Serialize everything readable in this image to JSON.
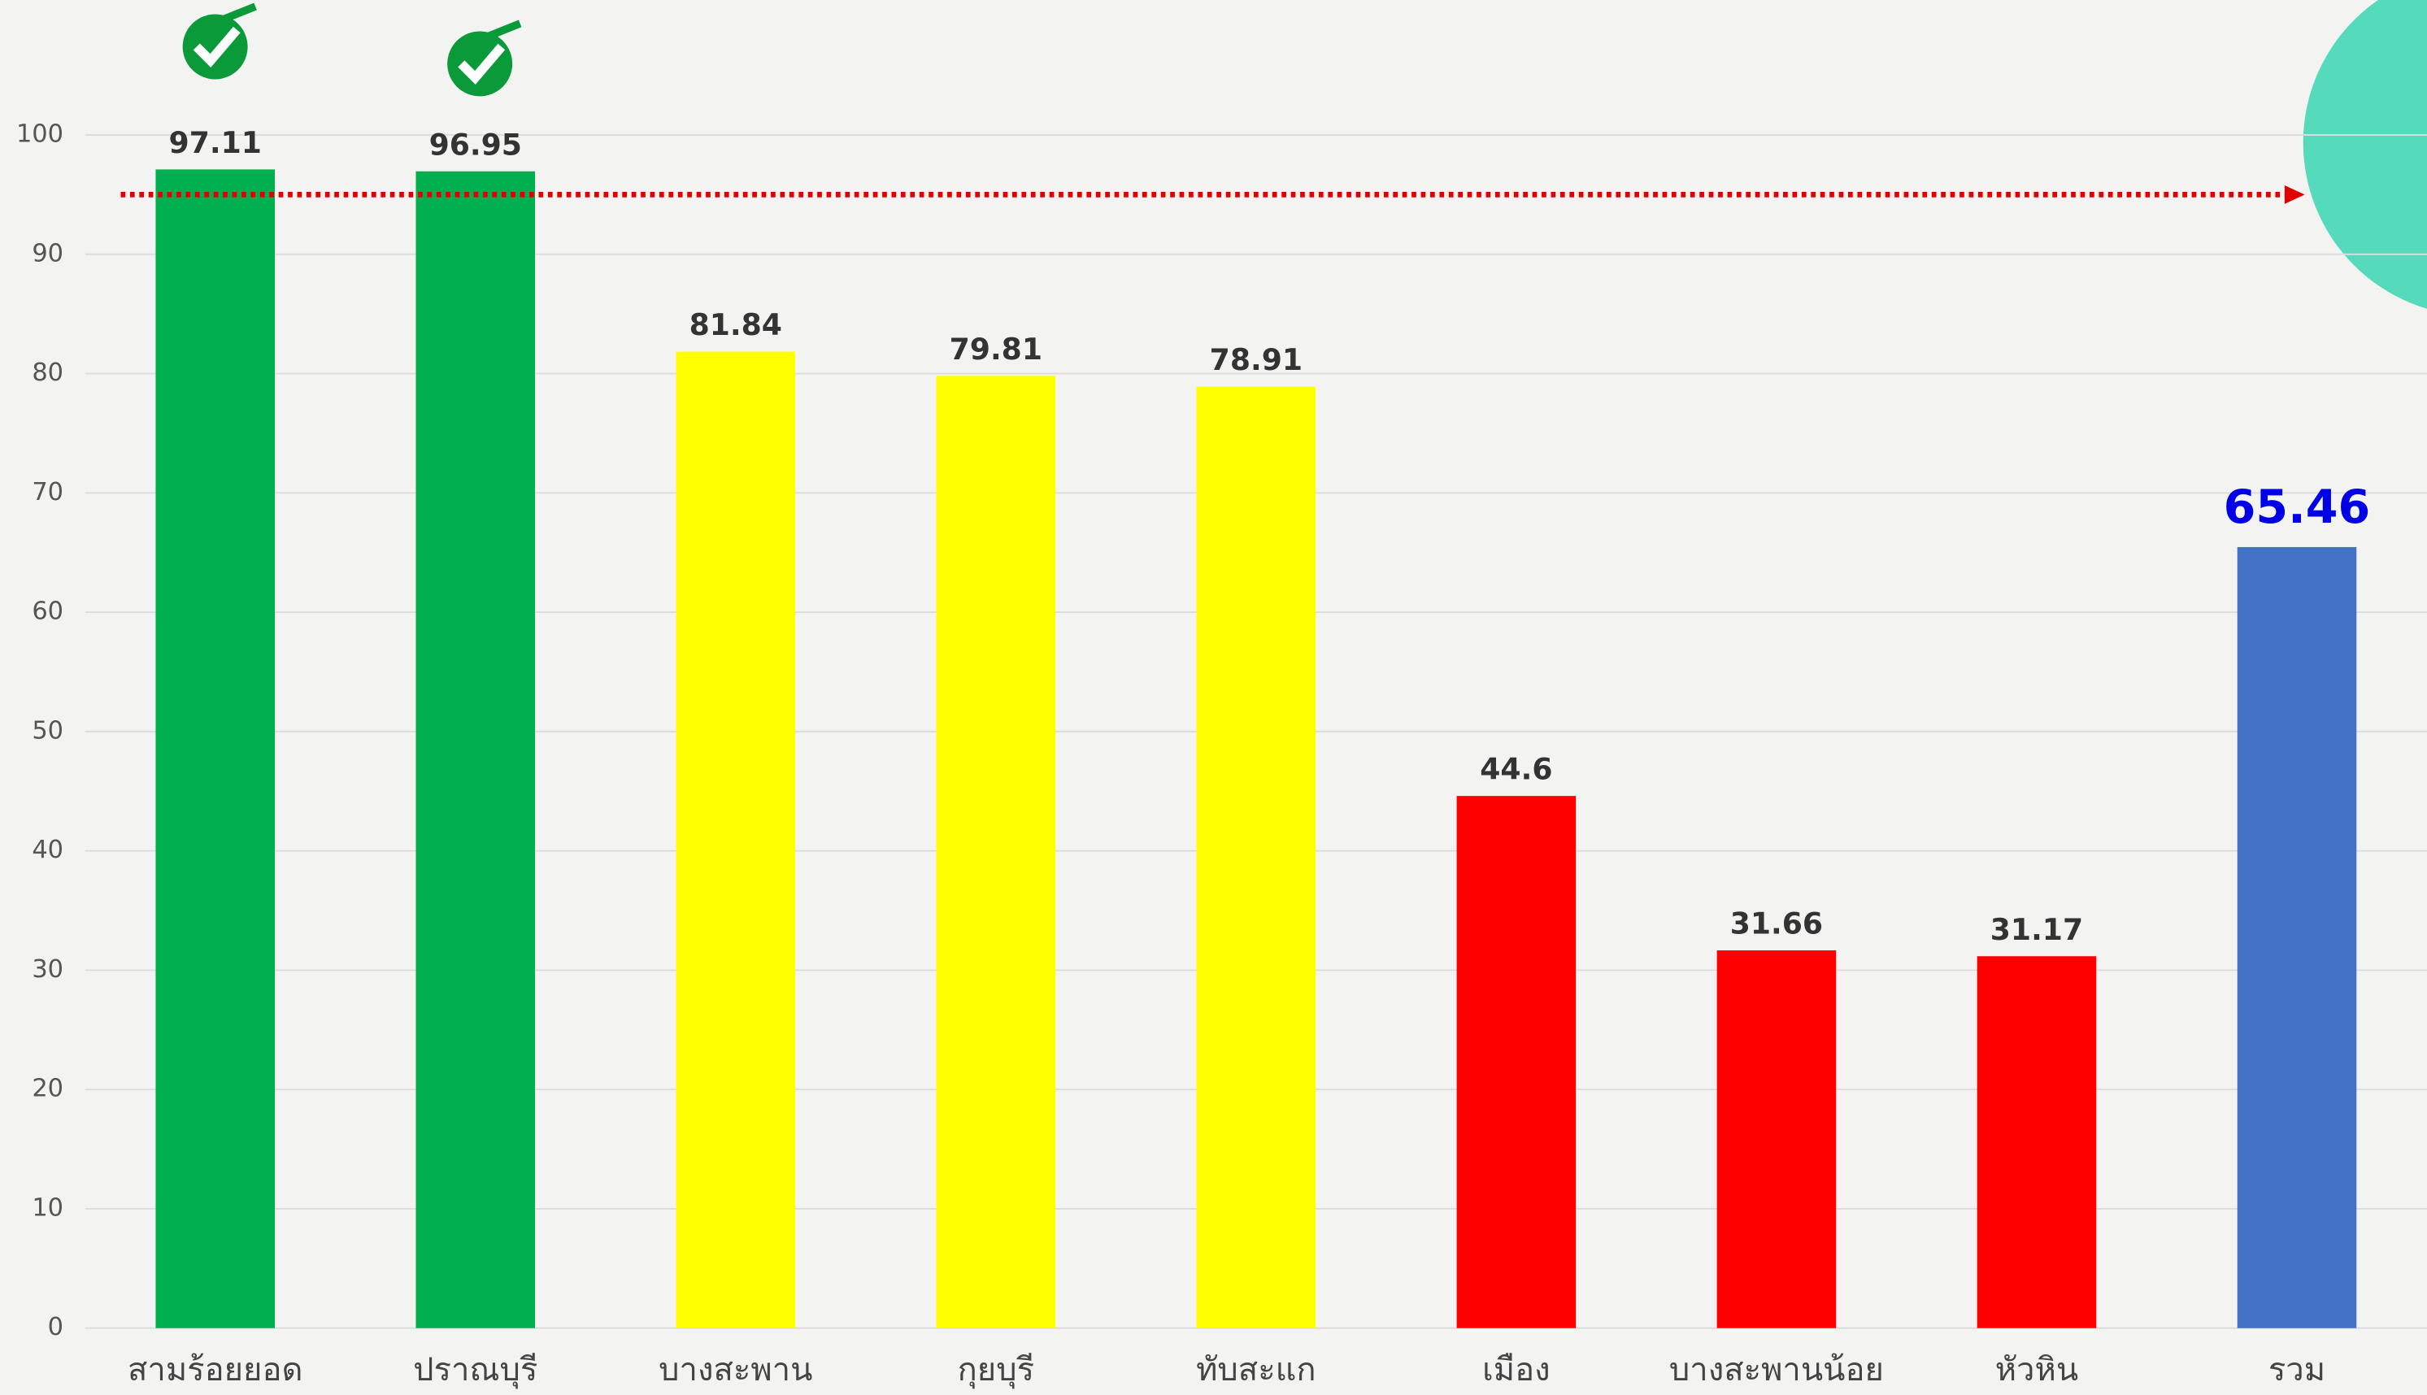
{
  "chart_data": {
    "type": "bar",
    "categories": [
      "สามร้อยยอด",
      "ปราณบุรี",
      "บางสะพาน",
      "กุยบุรี",
      "ทับสะแก",
      "เมือง",
      "บางสะพานน้อย",
      "หัวหิน",
      "รวม"
    ],
    "values": [
      97.11,
      96.95,
      81.84,
      79.81,
      78.91,
      44.6,
      31.66,
      31.17,
      65.46
    ],
    "colors": [
      "#00b050",
      "#00b050",
      "#ffff00",
      "#ffff00",
      "#ffff00",
      "#ff0000",
      "#ff0000",
      "#ff0000",
      "#4472c4"
    ],
    "ylim": [
      0,
      100
    ],
    "yticks": [
      0,
      10,
      20,
      30,
      40,
      50,
      60,
      70,
      80,
      90,
      100
    ],
    "grid": true,
    "reference_line": {
      "value": 95,
      "color": "#e00000"
    }
  }
}
